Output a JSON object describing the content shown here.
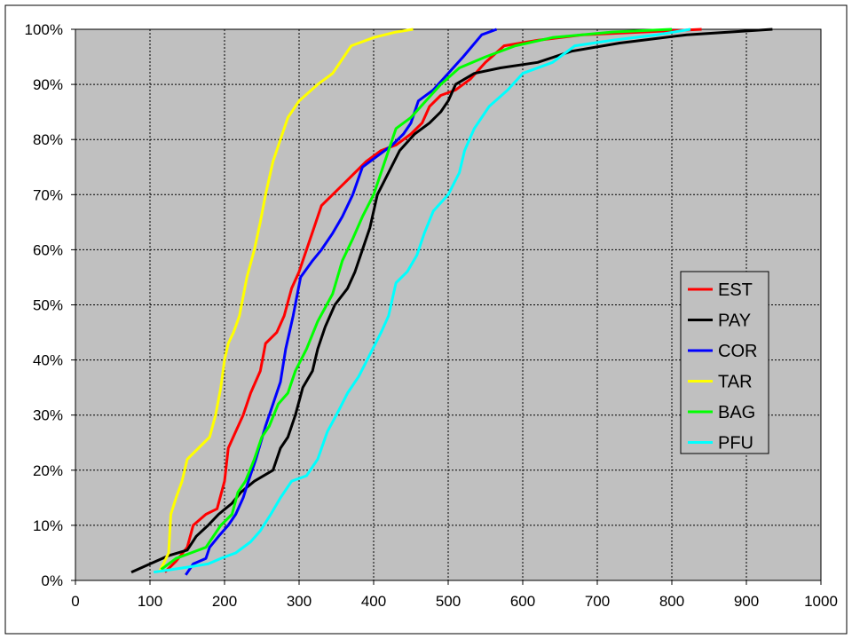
{
  "chart_data": {
    "type": "line",
    "title": "",
    "xlabel": "",
    "ylabel": "",
    "xlim": [
      0,
      1000
    ],
    "ylim": [
      0,
      1
    ],
    "x_ticks": [
      "0",
      "100",
      "200",
      "300",
      "400",
      "500",
      "600",
      "700",
      "800",
      "900",
      "1000"
    ],
    "y_ticks": [
      "0%",
      "10%",
      "20%",
      "30%",
      "40%",
      "50%",
      "60%",
      "70%",
      "80%",
      "90%",
      "100%"
    ],
    "grid": true,
    "legend_position": "right",
    "plot_background": "#c0c0c0",
    "series": [
      {
        "name": "EST",
        "color": "#ff0000",
        "points": [
          [
            120,
            0.015
          ],
          [
            135,
            0.035
          ],
          [
            150,
            0.06
          ],
          [
            158,
            0.1
          ],
          [
            175,
            0.12
          ],
          [
            190,
            0.13
          ],
          [
            200,
            0.18
          ],
          [
            205,
            0.24
          ],
          [
            215,
            0.27
          ],
          [
            225,
            0.3
          ],
          [
            235,
            0.34
          ],
          [
            248,
            0.38
          ],
          [
            255,
            0.43
          ],
          [
            270,
            0.45
          ],
          [
            280,
            0.48
          ],
          [
            290,
            0.53
          ],
          [
            300,
            0.56
          ],
          [
            310,
            0.6
          ],
          [
            320,
            0.64
          ],
          [
            330,
            0.68
          ],
          [
            345,
            0.7
          ],
          [
            360,
            0.72
          ],
          [
            375,
            0.74
          ],
          [
            390,
            0.76
          ],
          [
            410,
            0.78
          ],
          [
            430,
            0.79
          ],
          [
            450,
            0.81
          ],
          [
            465,
            0.83
          ],
          [
            475,
            0.86
          ],
          [
            490,
            0.88
          ],
          [
            510,
            0.89
          ],
          [
            530,
            0.91
          ],
          [
            550,
            0.94
          ],
          [
            575,
            0.97
          ],
          [
            620,
            0.98
          ],
          [
            680,
            0.99
          ],
          [
            760,
            0.995
          ],
          [
            840,
            1.0
          ]
        ]
      },
      {
        "name": "PAY",
        "color": "#000000",
        "points": [
          [
            75,
            0.015
          ],
          [
            100,
            0.03
          ],
          [
            125,
            0.045
          ],
          [
            150,
            0.055
          ],
          [
            162,
            0.08
          ],
          [
            178,
            0.1
          ],
          [
            192,
            0.12
          ],
          [
            210,
            0.14
          ],
          [
            222,
            0.16
          ],
          [
            240,
            0.18
          ],
          [
            265,
            0.2
          ],
          [
            275,
            0.24
          ],
          [
            285,
            0.26
          ],
          [
            295,
            0.3
          ],
          [
            305,
            0.35
          ],
          [
            318,
            0.38
          ],
          [
            325,
            0.42
          ],
          [
            335,
            0.46
          ],
          [
            348,
            0.5
          ],
          [
            365,
            0.53
          ],
          [
            375,
            0.56
          ],
          [
            385,
            0.6
          ],
          [
            395,
            0.64
          ],
          [
            405,
            0.7
          ],
          [
            420,
            0.74
          ],
          [
            435,
            0.78
          ],
          [
            455,
            0.81
          ],
          [
            475,
            0.83
          ],
          [
            490,
            0.85
          ],
          [
            500,
            0.87
          ],
          [
            510,
            0.9
          ],
          [
            535,
            0.92
          ],
          [
            570,
            0.93
          ],
          [
            620,
            0.94
          ],
          [
            665,
            0.96
          ],
          [
            730,
            0.975
          ],
          [
            820,
            0.99
          ],
          [
            935,
            1.0
          ]
        ]
      },
      {
        "name": "COR",
        "color": "#0000ff",
        "points": [
          [
            148,
            0.01
          ],
          [
            158,
            0.03
          ],
          [
            175,
            0.04
          ],
          [
            180,
            0.06
          ],
          [
            192,
            0.08
          ],
          [
            205,
            0.1
          ],
          [
            215,
            0.12
          ],
          [
            225,
            0.15
          ],
          [
            232,
            0.18
          ],
          [
            242,
            0.22
          ],
          [
            255,
            0.28
          ],
          [
            265,
            0.32
          ],
          [
            275,
            0.36
          ],
          [
            282,
            0.42
          ],
          [
            292,
            0.48
          ],
          [
            302,
            0.55
          ],
          [
            318,
            0.58
          ],
          [
            330,
            0.6
          ],
          [
            345,
            0.63
          ],
          [
            358,
            0.66
          ],
          [
            372,
            0.7
          ],
          [
            385,
            0.75
          ],
          [
            405,
            0.77
          ],
          [
            425,
            0.79
          ],
          [
            440,
            0.81
          ],
          [
            450,
            0.83
          ],
          [
            460,
            0.87
          ],
          [
            480,
            0.89
          ],
          [
            500,
            0.92
          ],
          [
            520,
            0.95
          ],
          [
            545,
            0.99
          ],
          [
            565,
            1.0
          ]
        ]
      },
      {
        "name": "TAR",
        "color": "#ffff00",
        "points": [
          [
            112,
            0.015
          ],
          [
            118,
            0.03
          ],
          [
            125,
            0.05
          ],
          [
            128,
            0.12
          ],
          [
            135,
            0.15
          ],
          [
            143,
            0.18
          ],
          [
            150,
            0.22
          ],
          [
            165,
            0.24
          ],
          [
            180,
            0.26
          ],
          [
            188,
            0.3
          ],
          [
            195,
            0.35
          ],
          [
            200,
            0.4
          ],
          [
            205,
            0.43
          ],
          [
            212,
            0.45
          ],
          [
            220,
            0.48
          ],
          [
            230,
            0.55
          ],
          [
            240,
            0.6
          ],
          [
            248,
            0.65
          ],
          [
            255,
            0.7
          ],
          [
            265,
            0.76
          ],
          [
            275,
            0.8
          ],
          [
            285,
            0.84
          ],
          [
            300,
            0.87
          ],
          [
            325,
            0.9
          ],
          [
            345,
            0.92
          ],
          [
            355,
            0.94
          ],
          [
            370,
            0.97
          ],
          [
            400,
            0.985
          ],
          [
            430,
            0.995
          ],
          [
            453,
            1.0
          ]
        ]
      },
      {
        "name": "BAG",
        "color": "#00ff00",
        "points": [
          [
            115,
            0.02
          ],
          [
            135,
            0.04
          ],
          [
            155,
            0.05
          ],
          [
            175,
            0.06
          ],
          [
            185,
            0.08
          ],
          [
            195,
            0.1
          ],
          [
            210,
            0.12
          ],
          [
            218,
            0.16
          ],
          [
            228,
            0.18
          ],
          [
            240,
            0.22
          ],
          [
            250,
            0.26
          ],
          [
            260,
            0.28
          ],
          [
            272,
            0.32
          ],
          [
            285,
            0.34
          ],
          [
            295,
            0.38
          ],
          [
            310,
            0.42
          ],
          [
            325,
            0.47
          ],
          [
            345,
            0.52
          ],
          [
            358,
            0.58
          ],
          [
            372,
            0.62
          ],
          [
            385,
            0.66
          ],
          [
            400,
            0.7
          ],
          [
            410,
            0.74
          ],
          [
            420,
            0.78
          ],
          [
            430,
            0.82
          ],
          [
            450,
            0.84
          ],
          [
            470,
            0.87
          ],
          [
            490,
            0.9
          ],
          [
            515,
            0.93
          ],
          [
            550,
            0.95
          ],
          [
            590,
            0.97
          ],
          [
            640,
            0.985
          ],
          [
            720,
            0.995
          ],
          [
            800,
            1.0
          ]
        ]
      },
      {
        "name": "PFU",
        "color": "#00ffff",
        "points": [
          [
            105,
            0.015
          ],
          [
            130,
            0.02
          ],
          [
            155,
            0.025
          ],
          [
            178,
            0.03
          ],
          [
            195,
            0.04
          ],
          [
            215,
            0.05
          ],
          [
            235,
            0.07
          ],
          [
            248,
            0.09
          ],
          [
            262,
            0.12
          ],
          [
            275,
            0.15
          ],
          [
            290,
            0.18
          ],
          [
            310,
            0.19
          ],
          [
            325,
            0.22
          ],
          [
            338,
            0.27
          ],
          [
            350,
            0.3
          ],
          [
            365,
            0.34
          ],
          [
            380,
            0.37
          ],
          [
            395,
            0.41
          ],
          [
            410,
            0.45
          ],
          [
            420,
            0.48
          ],
          [
            430,
            0.54
          ],
          [
            445,
            0.56
          ],
          [
            458,
            0.59
          ],
          [
            468,
            0.63
          ],
          [
            480,
            0.67
          ],
          [
            500,
            0.7
          ],
          [
            515,
            0.74
          ],
          [
            522,
            0.78
          ],
          [
            535,
            0.82
          ],
          [
            555,
            0.86
          ],
          [
            580,
            0.89
          ],
          [
            600,
            0.92
          ],
          [
            640,
            0.94
          ],
          [
            670,
            0.97
          ],
          [
            720,
            0.98
          ],
          [
            780,
            0.99
          ],
          [
            825,
            1.0
          ]
        ]
      }
    ]
  }
}
